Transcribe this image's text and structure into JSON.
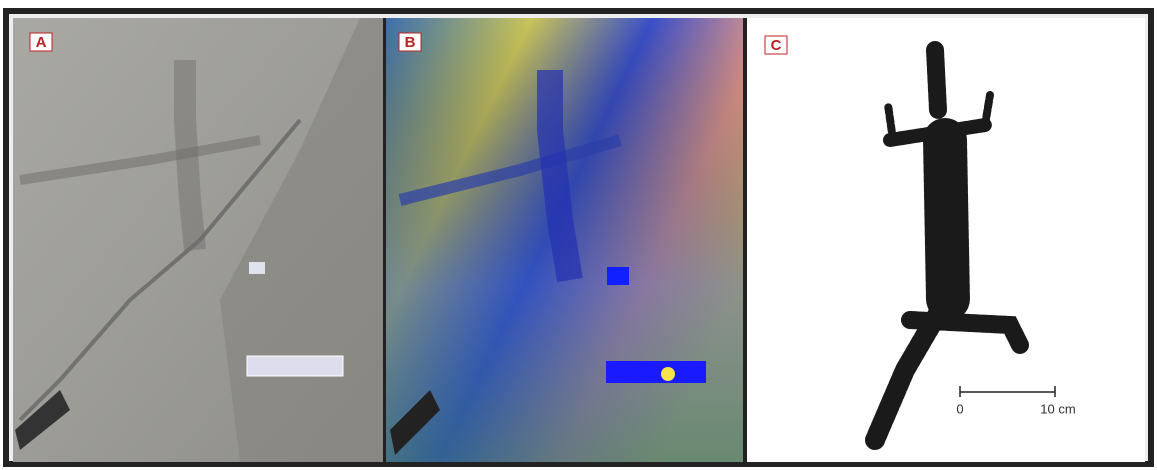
{
  "panels": [
    {
      "label": "A"
    },
    {
      "label": "B"
    },
    {
      "label": "C"
    }
  ],
  "scale_bar": {
    "start": "0",
    "end": "10 cm"
  }
}
